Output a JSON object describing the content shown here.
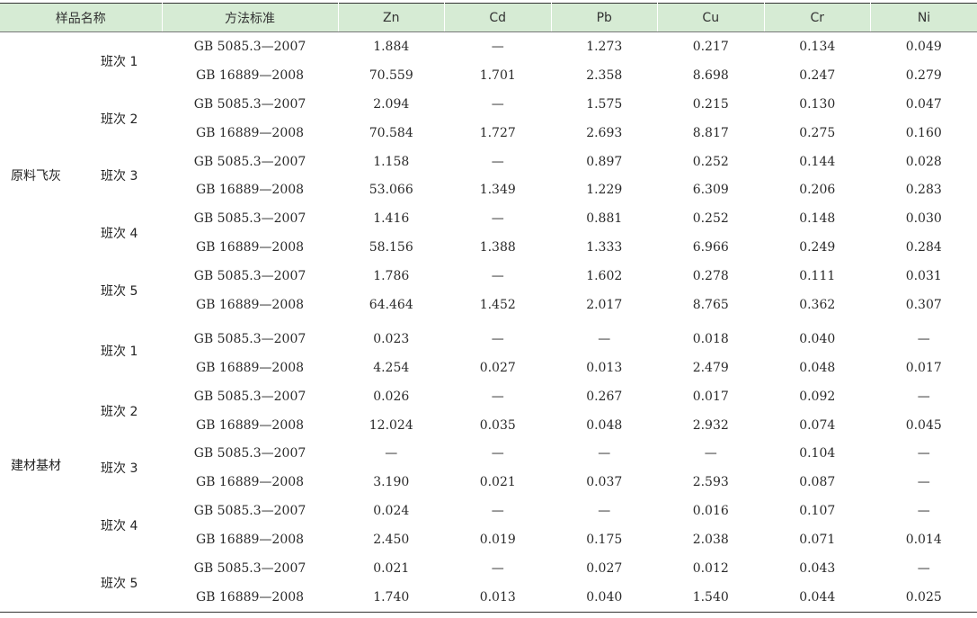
{
  "headers": {
    "sample": "样品名称",
    "method": "方法标准",
    "zn": "Zn",
    "cd": "Cd",
    "pb": "Pb",
    "cu": "Cu",
    "cr": "Cr",
    "ni": "Ni"
  },
  "groups": [
    {
      "sample": "原料飞灰",
      "shifts": [
        {
          "label": "班次 1",
          "rows": [
            {
              "method": "GB 5085.3—2007",
              "values": [
                "1.884",
                "—",
                "1.273",
                "0.217",
                "0.134",
                "0.049"
              ]
            },
            {
              "method": "GB 16889—2008",
              "values": [
                "70.559",
                "1.701",
                "2.358",
                "8.698",
                "0.247",
                "0.279"
              ]
            }
          ]
        },
        {
          "label": "班次 2",
          "rows": [
            {
              "method": "GB 5085.3—2007",
              "values": [
                "2.094",
                "—",
                "1.575",
                "0.215",
                "0.130",
                "0.047"
              ]
            },
            {
              "method": "GB 16889—2008",
              "values": [
                "70.584",
                "1.727",
                "2.693",
                "8.817",
                "0.275",
                "0.160"
              ]
            }
          ]
        },
        {
          "label": "班次 3",
          "rows": [
            {
              "method": "GB 5085.3—2007",
              "values": [
                "1.158",
                "—",
                "0.897",
                "0.252",
                "0.144",
                "0.028"
              ]
            },
            {
              "method": "GB 16889—2008",
              "values": [
                "53.066",
                "1.349",
                "1.229",
                "6.309",
                "0.206",
                "0.283"
              ]
            }
          ]
        },
        {
          "label": "班次 4",
          "rows": [
            {
              "method": "GB 5085.3—2007",
              "values": [
                "1.416",
                "—",
                "0.881",
                "0.252",
                "0.148",
                "0.030"
              ]
            },
            {
              "method": "GB 16889—2008",
              "values": [
                "58.156",
                "1.388",
                "1.333",
                "6.966",
                "0.249",
                "0.284"
              ]
            }
          ]
        },
        {
          "label": "班次 5",
          "rows": [
            {
              "method": "GB 5085.3—2007",
              "values": [
                "1.786",
                "—",
                "1.602",
                "0.278",
                "0.111",
                "0.031"
              ]
            },
            {
              "method": "GB 16889—2008",
              "values": [
                "64.464",
                "1.452",
                "2.017",
                "8.765",
                "0.362",
                "0.307"
              ]
            }
          ]
        }
      ]
    },
    {
      "sample": "建材基材",
      "shifts": [
        {
          "label": "班次 1",
          "rows": [
            {
              "method": "GB 5085.3—2007",
              "values": [
                "0.023",
                "—",
                "—",
                "0.018",
                "0.040",
                "—"
              ]
            },
            {
              "method": "GB 16889—2008",
              "values": [
                "4.254",
                "0.027",
                "0.013",
                "2.479",
                "0.048",
                "0.017"
              ]
            }
          ]
        },
        {
          "label": "班次 2",
          "rows": [
            {
              "method": "GB 5085.3—2007",
              "values": [
                "0.026",
                "—",
                "0.267",
                "0.017",
                "0.092",
                "—"
              ]
            },
            {
              "method": "GB 16889—2008",
              "values": [
                "12.024",
                "0.035",
                "0.048",
                "2.932",
                "0.074",
                "0.045"
              ]
            }
          ]
        },
        {
          "label": "班次 3",
          "rows": [
            {
              "method": "GB 5085.3—2007",
              "values": [
                "—",
                "—",
                "—",
                "—",
                "0.104",
                "—"
              ]
            },
            {
              "method": "GB 16889—2008",
              "values": [
                "3.190",
                "0.021",
                "0.037",
                "2.593",
                "0.087",
                "—"
              ]
            }
          ]
        },
        {
          "label": "班次 4",
          "rows": [
            {
              "method": "GB 5085.3—2007",
              "values": [
                "0.024",
                "—",
                "—",
                "0.016",
                "0.107",
                "—"
              ]
            },
            {
              "method": "GB 16889—2008",
              "values": [
                "2.450",
                "0.019",
                "0.175",
                "2.038",
                "0.071",
                "0.014"
              ]
            }
          ]
        },
        {
          "label": "班次 5",
          "rows": [
            {
              "method": "GB 5085.3—2007",
              "values": [
                "0.021",
                "—",
                "0.027",
                "0.012",
                "0.043",
                "—"
              ]
            },
            {
              "method": "GB 16889—2008",
              "values": [
                "1.740",
                "0.013",
                "0.040",
                "1.540",
                "0.044",
                "0.025"
              ]
            }
          ]
        }
      ]
    }
  ]
}
